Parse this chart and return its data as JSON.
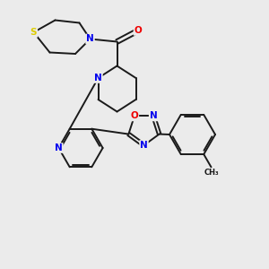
{
  "background_color": "#ebebeb",
  "bond_color": "#1a1a1a",
  "atom_colors": {
    "N": "#0000ee",
    "O": "#ee0000",
    "S": "#ddcc00",
    "C": "#1a1a1a"
  },
  "lw": 1.4,
  "fs": 7.5
}
